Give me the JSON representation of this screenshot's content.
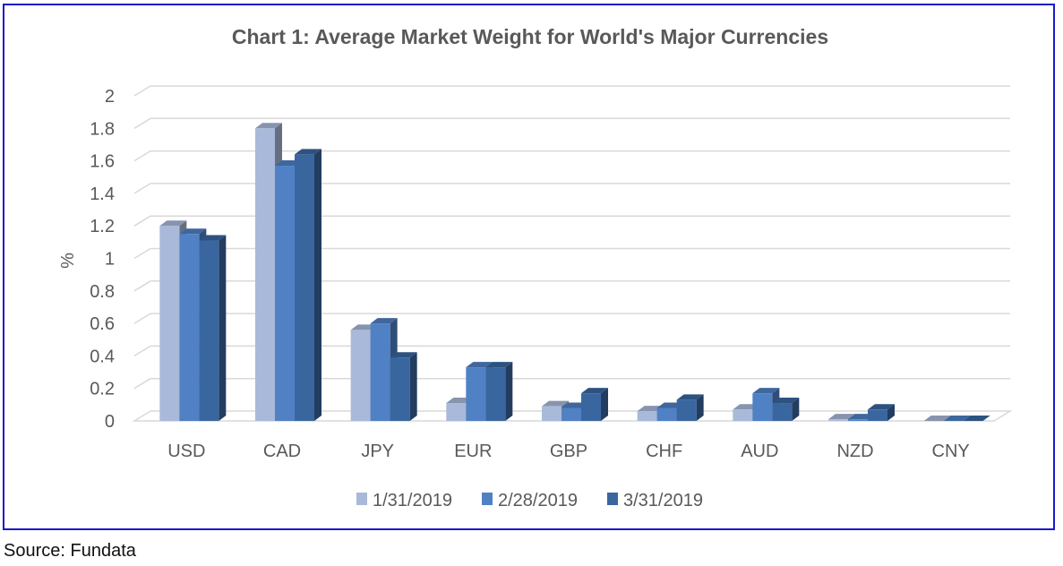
{
  "source_note": "Source: Fundata",
  "colors": {
    "frame": "#1a1acc",
    "grid": "#d9d9d9",
    "text": "#595959",
    "title": "#595959"
  },
  "chart_data": {
    "type": "bar",
    "title": "Chart 1: Average Market Weight for World's Major Currencies",
    "xlabel": "",
    "ylabel": "%",
    "ylim": [
      0,
      2
    ],
    "y_ticks": [
      "0",
      "0.2",
      "0.4",
      "0.6",
      "0.8",
      "1",
      "1.2",
      "1.4",
      "1.6",
      "1.8",
      "2"
    ],
    "categories": [
      "USD",
      "CAD",
      "JPY",
      "EUR",
      "GBP",
      "CHF",
      "AUD",
      "NZD",
      "CNY"
    ],
    "series": [
      {
        "name": "1/31/2019",
        "color": "#a9b9d9",
        "values": [
          1.2,
          1.8,
          0.56,
          0.11,
          0.09,
          0.06,
          0.07,
          0.01,
          0.0
        ]
      },
      {
        "name": "2/28/2019",
        "color": "#4f81c4",
        "values": [
          1.15,
          1.57,
          0.6,
          0.33,
          0.08,
          0.08,
          0.17,
          0.01,
          0.0
        ]
      },
      {
        "name": "3/31/2019",
        "color": "#3a66a0",
        "values": [
          1.11,
          1.64,
          0.39,
          0.33,
          0.17,
          0.13,
          0.11,
          0.07,
          0.0
        ]
      }
    ],
    "legend_position": "bottom",
    "grid": true
  }
}
